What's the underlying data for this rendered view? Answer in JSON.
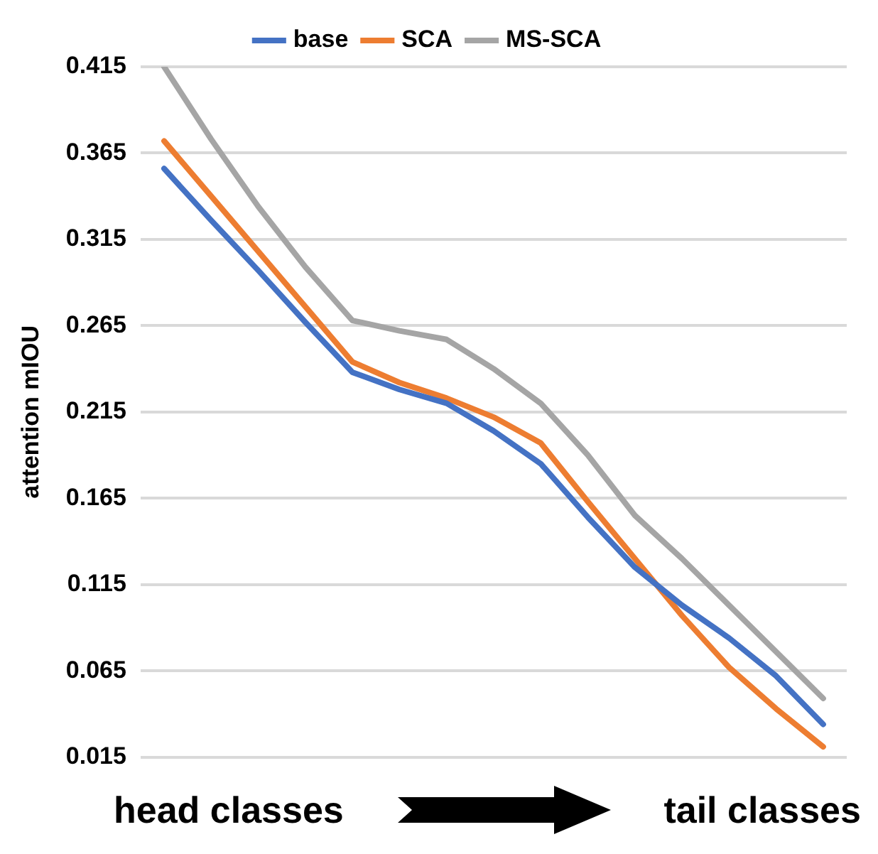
{
  "chart_data": {
    "type": "line",
    "ylabel": "attention mIOU",
    "categories": [
      null,
      null,
      null,
      null,
      null,
      null,
      null,
      null,
      null,
      null,
      null,
      null,
      null,
      null,
      null
    ],
    "series": [
      {
        "name": "base",
        "color": "#4472c4",
        "values": [
          0.356,
          0.326,
          0.297,
          0.267,
          0.238,
          0.228,
          0.22,
          0.204,
          0.185,
          0.154,
          0.125,
          0.103,
          0.084,
          0.062,
          0.034
        ]
      },
      {
        "name": "SCA",
        "color": "#ed7d31",
        "values": [
          0.372,
          0.34,
          0.308,
          0.276,
          0.244,
          0.232,
          0.223,
          0.212,
          0.197,
          0.163,
          0.13,
          0.097,
          0.067,
          0.043,
          0.021
        ]
      },
      {
        "name": "MS-SCA",
        "color": "#a5a5a5",
        "values": [
          0.415,
          0.373,
          0.334,
          0.299,
          0.268,
          0.262,
          0.257,
          0.24,
          0.22,
          0.19,
          0.155,
          0.13,
          0.103,
          0.076,
          0.049
        ]
      }
    ],
    "ylim": [
      0.015,
      0.415
    ],
    "yticks": [
      0.015,
      0.065,
      0.115,
      0.165,
      0.215,
      0.265,
      0.315,
      0.365,
      0.415
    ],
    "grid": "y",
    "legend": "top",
    "marker": "none",
    "line_style": "solid",
    "annotations": [
      "head classes",
      "tail classes"
    ]
  }
}
